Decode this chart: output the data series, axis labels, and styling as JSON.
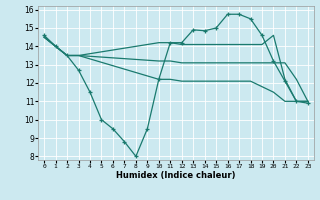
{
  "xlabel": "Humidex (Indice chaleur)",
  "bg_color": "#cce9f0",
  "line_color": "#1a7a6e",
  "grid_color": "#ffffff",
  "xlim": [
    -0.5,
    23.5
  ],
  "ylim": [
    7.8,
    16.2
  ],
  "xticks": [
    0,
    1,
    2,
    3,
    4,
    5,
    6,
    7,
    8,
    9,
    10,
    11,
    12,
    13,
    14,
    15,
    16,
    17,
    18,
    19,
    20,
    21,
    22,
    23
  ],
  "yticks": [
    8,
    9,
    10,
    11,
    12,
    13,
    14,
    15,
    16
  ],
  "line1_x": [
    0,
    1,
    2,
    3,
    4,
    5,
    6,
    7,
    8,
    9,
    10,
    11,
    12,
    13,
    14,
    15,
    16,
    17,
    18,
    19,
    20,
    21,
    22,
    23
  ],
  "line1_y": [
    14.6,
    14.0,
    13.5,
    12.7,
    11.5,
    10.0,
    9.5,
    8.8,
    8.0,
    9.5,
    12.2,
    14.2,
    14.2,
    14.9,
    14.85,
    15.0,
    15.75,
    15.75,
    15.5,
    14.6,
    13.2,
    12.1,
    11.0,
    10.9
  ],
  "line2_x": [
    0,
    1,
    2,
    3,
    10,
    11,
    12,
    13,
    14,
    15,
    16,
    17,
    18,
    19,
    20,
    21,
    22,
    23
  ],
  "line2_y": [
    14.5,
    14.0,
    13.5,
    13.5,
    14.2,
    14.2,
    14.1,
    14.1,
    14.1,
    14.1,
    14.1,
    14.1,
    14.1,
    14.1,
    14.6,
    12.2,
    11.0,
    11.0
  ],
  "line3_x": [
    0,
    1,
    2,
    3,
    10,
    11,
    12,
    13,
    14,
    15,
    16,
    17,
    18,
    19,
    20,
    21,
    22,
    23
  ],
  "line3_y": [
    14.5,
    14.0,
    13.5,
    13.5,
    12.2,
    12.2,
    12.1,
    12.1,
    12.1,
    12.1,
    12.1,
    12.1,
    12.1,
    11.8,
    11.5,
    11.0,
    11.0,
    11.0
  ],
  "line4_x": [
    0,
    1,
    2,
    3,
    10,
    11,
    12,
    13,
    14,
    15,
    16,
    17,
    18,
    19,
    20,
    21,
    22,
    23
  ],
  "line4_y": [
    14.5,
    14.0,
    13.5,
    13.5,
    13.2,
    13.2,
    13.1,
    13.1,
    13.1,
    13.1,
    13.1,
    13.1,
    13.1,
    13.1,
    13.1,
    13.1,
    12.2,
    11.0
  ]
}
